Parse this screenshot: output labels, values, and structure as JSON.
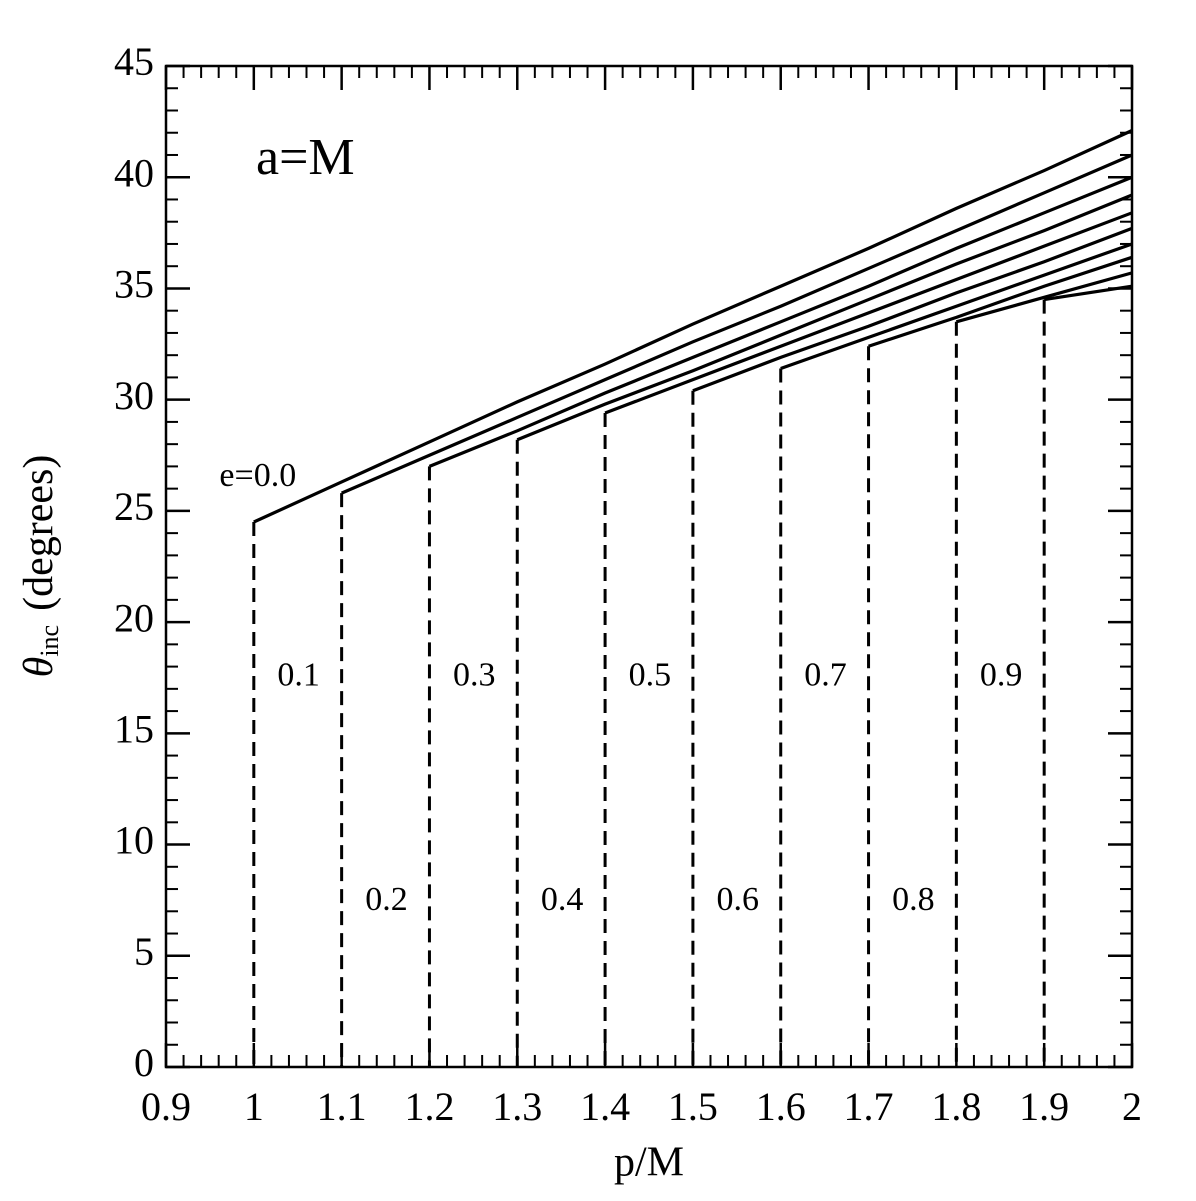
{
  "chart_data": {
    "type": "line",
    "annotation": "a=M",
    "xlabel": "p/M",
    "ylabel": {
      "symbol": "θ",
      "subscript": "inc",
      "text": "(degrees)"
    },
    "xlim": [
      0.9,
      2
    ],
    "ylim": [
      0,
      45
    ],
    "xticks": [
      0.9,
      1,
      1.1,
      1.2,
      1.3,
      1.4,
      1.5,
      1.6,
      1.7,
      1.8,
      1.9,
      2
    ],
    "yticks": [
      0,
      5,
      10,
      15,
      20,
      25,
      30,
      35,
      40,
      45
    ],
    "color": "#000000",
    "series": [
      {
        "name": "e=0.0",
        "x": [
          1,
          1.1,
          1.2,
          1.3,
          1.4,
          1.5,
          1.6,
          1.7,
          1.8,
          1.9,
          2
        ],
        "values": [
          24.5,
          26.3,
          28.1,
          29.9,
          31.6,
          33.4,
          35.1,
          36.8,
          38.6,
          40.3,
          42.1
        ]
      },
      {
        "name": "0.1",
        "x": [
          1.1,
          1.2,
          1.3,
          1.4,
          1.5,
          1.6,
          1.7,
          1.8,
          1.9,
          2
        ],
        "values": [
          25.8,
          27.5,
          29.2,
          30.9,
          32.6,
          34.2,
          35.9,
          37.6,
          39.3,
          41.0
        ]
      },
      {
        "name": "0.2",
        "x": [
          1.2,
          1.3,
          1.4,
          1.5,
          1.6,
          1.7,
          1.8,
          1.9,
          2
        ],
        "values": [
          27.0,
          28.6,
          30.3,
          31.9,
          33.5,
          35.1,
          36.8,
          38.4,
          40.0
        ]
      },
      {
        "name": "0.3",
        "x": [
          1.3,
          1.4,
          1.5,
          1.6,
          1.7,
          1.8,
          1.9,
          2
        ],
        "values": [
          28.2,
          29.8,
          31.3,
          32.9,
          34.5,
          36.1,
          37.6,
          39.2
        ]
      },
      {
        "name": "0.4",
        "x": [
          1.4,
          1.5,
          1.6,
          1.7,
          1.8,
          1.9,
          2
        ],
        "values": [
          29.4,
          30.9,
          32.4,
          33.9,
          35.4,
          36.9,
          38.4
        ]
      },
      {
        "name": "0.5",
        "x": [
          1.5,
          1.6,
          1.7,
          1.8,
          1.9,
          2
        ],
        "values": [
          30.4,
          31.9,
          33.3,
          34.8,
          36.2,
          37.7
        ]
      },
      {
        "name": "0.6",
        "x": [
          1.6,
          1.7,
          1.8,
          1.9,
          2
        ],
        "values": [
          31.4,
          32.8,
          34.2,
          35.6,
          37.0
        ]
      },
      {
        "name": "0.7",
        "x": [
          1.7,
          1.8,
          1.9,
          2
        ],
        "values": [
          32.4,
          33.7,
          35.1,
          36.4
        ]
      },
      {
        "name": "0.8",
        "x": [
          1.8,
          1.9,
          2
        ],
        "values": [
          33.5,
          34.6,
          35.7
        ]
      },
      {
        "name": "0.9",
        "x": [
          1.9,
          2
        ],
        "values": [
          34.5,
          35.1
        ]
      }
    ]
  }
}
